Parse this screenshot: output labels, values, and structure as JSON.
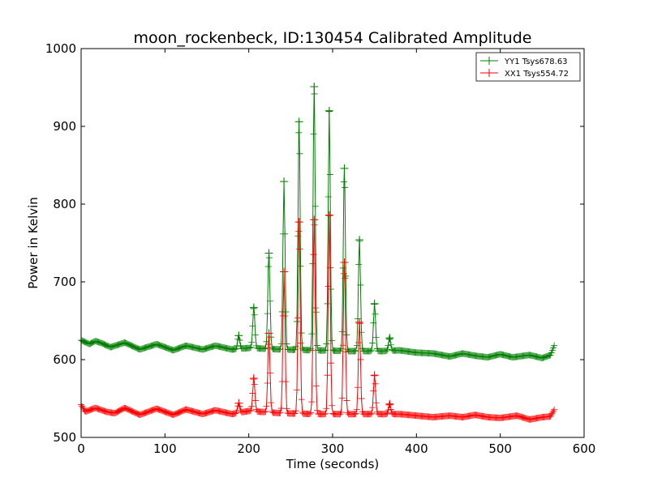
{
  "chart_data": {
    "type": "line",
    "title": "moon_rockenbeck, ID:130454 Calibrated Amplitude",
    "xlabel": "Time (seconds)",
    "ylabel": "Power in Kelvin",
    "xlim": [
      0,
      600
    ],
    "ylim": [
      500,
      1000
    ],
    "xticks": [
      0,
      100,
      200,
      300,
      400,
      500,
      600
    ],
    "yticks": [
      500,
      600,
      700,
      800,
      900,
      1000
    ],
    "grid": false,
    "legend_position": "top-right",
    "series": [
      {
        "name": "YY1 Tsys678.63",
        "color": "#008000",
        "marker": "+",
        "baseline": [
          [
            0,
            625
          ],
          [
            10,
            620
          ],
          [
            17,
            624
          ],
          [
            25,
            621
          ],
          [
            35,
            616
          ],
          [
            52,
            622
          ],
          [
            70,
            613
          ],
          [
            90,
            620
          ],
          [
            110,
            612
          ],
          [
            125,
            618
          ],
          [
            145,
            613
          ],
          [
            160,
            618
          ],
          [
            180,
            613
          ],
          [
            200,
            615
          ],
          [
            240,
            613
          ],
          [
            280,
            612
          ],
          [
            320,
            611
          ],
          [
            360,
            611
          ],
          [
            380,
            612
          ],
          [
            400,
            609
          ],
          [
            420,
            608
          ],
          [
            440,
            604
          ],
          [
            455,
            608
          ],
          [
            470,
            605
          ],
          [
            485,
            603
          ],
          [
            500,
            607
          ],
          [
            515,
            603
          ],
          [
            535,
            606
          ],
          [
            550,
            602
          ],
          [
            560,
            606
          ],
          [
            565,
            620
          ]
        ],
        "peaks": [
          {
            "x": 188,
            "y": 631
          },
          {
            "x": 206,
            "y": 667
          },
          {
            "x": 224,
            "y": 737
          },
          {
            "x": 242,
            "y": 829
          },
          {
            "x": 260,
            "y": 906
          },
          {
            "x": 278,
            "y": 951
          },
          {
            "x": 296,
            "y": 920
          },
          {
            "x": 314,
            "y": 846
          },
          {
            "x": 332,
            "y": 754
          },
          {
            "x": 350,
            "y": 672
          },
          {
            "x": 368,
            "y": 628
          }
        ]
      },
      {
        "name": "XX1 Tsys554.72",
        "color": "#ff0000",
        "marker": "+",
        "baseline": [
          [
            0,
            542
          ],
          [
            5,
            533
          ],
          [
            17,
            538
          ],
          [
            30,
            533
          ],
          [
            40,
            531
          ],
          [
            52,
            538
          ],
          [
            70,
            529
          ],
          [
            90,
            537
          ],
          [
            110,
            529
          ],
          [
            125,
            536
          ],
          [
            145,
            530
          ],
          [
            160,
            535
          ],
          [
            180,
            530
          ],
          [
            200,
            534
          ],
          [
            240,
            531
          ],
          [
            280,
            530
          ],
          [
            320,
            530
          ],
          [
            360,
            530
          ],
          [
            380,
            530
          ],
          [
            400,
            528
          ],
          [
            420,
            526
          ],
          [
            440,
            528
          ],
          [
            455,
            526
          ],
          [
            470,
            529
          ],
          [
            485,
            526
          ],
          [
            500,
            525
          ],
          [
            520,
            528
          ],
          [
            535,
            523
          ],
          [
            550,
            526
          ],
          [
            560,
            527
          ],
          [
            565,
            537
          ]
        ],
        "peaks": [
          {
            "x": 188,
            "y": 544
          },
          {
            "x": 206,
            "y": 576
          },
          {
            "x": 224,
            "y": 634
          },
          {
            "x": 242,
            "y": 713
          },
          {
            "x": 260,
            "y": 777
          },
          {
            "x": 278,
            "y": 780
          },
          {
            "x": 296,
            "y": 786
          },
          {
            "x": 314,
            "y": 725
          },
          {
            "x": 332,
            "y": 648
          },
          {
            "x": 350,
            "y": 580
          },
          {
            "x": 368,
            "y": 543
          }
        ]
      }
    ]
  }
}
